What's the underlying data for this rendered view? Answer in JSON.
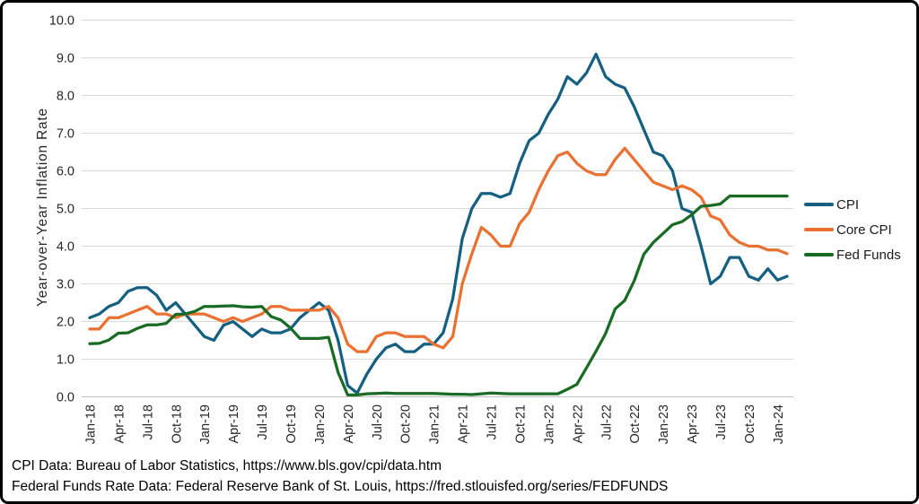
{
  "footer": {
    "line1": "CPI Data: Bureau of Labor Statistics, https://www.bls.gov/cpi/data.htm",
    "line2": "Federal Funds Rate Data: Federal Reserve Bank of St. Louis, https://fred.stlouisfed.org/series/FEDFUNDS"
  },
  "chart_data": {
    "type": "line",
    "title": "",
    "xlabel": "",
    "ylabel": "Year-over-Year Inflation Rate",
    "ylim": [
      0.0,
      10.0
    ],
    "y_ticks": [
      0.0,
      1.0,
      2.0,
      3.0,
      4.0,
      5.0,
      6.0,
      7.0,
      8.0,
      9.0,
      10.0
    ],
    "grid": "horizontal",
    "gridline_color": "#D9D9D9",
    "axis_line_color": "#C0C0C0",
    "tick_label_color": "#262626",
    "legend_position": "right",
    "x_tick_every": 3,
    "x": [
      "Jan-18",
      "Feb-18",
      "Mar-18",
      "Apr-18",
      "May-18",
      "Jun-18",
      "Jul-18",
      "Aug-18",
      "Sep-18",
      "Oct-18",
      "Nov-18",
      "Dec-18",
      "Jan-19",
      "Feb-19",
      "Mar-19",
      "Apr-19",
      "May-19",
      "Jun-19",
      "Jul-19",
      "Aug-19",
      "Sep-19",
      "Oct-19",
      "Nov-19",
      "Dec-19",
      "Jan-20",
      "Feb-20",
      "Mar-20",
      "Apr-20",
      "May-20",
      "Jun-20",
      "Jul-20",
      "Aug-20",
      "Sep-20",
      "Oct-20",
      "Nov-20",
      "Dec-20",
      "Jan-21",
      "Feb-21",
      "Mar-21",
      "Apr-21",
      "May-21",
      "Jun-21",
      "Jul-21",
      "Aug-21",
      "Sep-21",
      "Oct-21",
      "Nov-21",
      "Dec-21",
      "Jan-22",
      "Feb-22",
      "Mar-22",
      "Apr-22",
      "May-22",
      "Jun-22",
      "Jul-22",
      "Aug-22",
      "Sep-22",
      "Oct-22",
      "Nov-22",
      "Dec-22",
      "Jan-23",
      "Feb-23",
      "Mar-23",
      "Apr-23",
      "May-23",
      "Jun-23",
      "Jul-23",
      "Aug-23",
      "Sep-23",
      "Oct-23",
      "Nov-23",
      "Dec-23",
      "Jan-24",
      "Feb-24"
    ],
    "series": [
      {
        "name": "CPI",
        "color": "#156082",
        "values": [
          2.1,
          2.2,
          2.4,
          2.5,
          2.8,
          2.9,
          2.9,
          2.7,
          2.3,
          2.5,
          2.2,
          1.9,
          1.6,
          1.5,
          1.9,
          2.0,
          1.8,
          1.6,
          1.8,
          1.7,
          1.7,
          1.8,
          2.1,
          2.3,
          2.5,
          2.3,
          1.5,
          0.3,
          0.1,
          0.6,
          1.0,
          1.3,
          1.4,
          1.2,
          1.2,
          1.4,
          1.4,
          1.7,
          2.6,
          4.2,
          5.0,
          5.4,
          5.4,
          5.3,
          5.4,
          6.2,
          6.8,
          7.0,
          7.5,
          7.9,
          8.5,
          8.3,
          8.6,
          9.1,
          8.5,
          8.3,
          8.2,
          7.7,
          7.1,
          6.5,
          6.4,
          6.0,
          5.0,
          4.9,
          4.0,
          3.0,
          3.2,
          3.7,
          3.7,
          3.2,
          3.1,
          3.4,
          3.1,
          3.2
        ]
      },
      {
        "name": "Core CPI",
        "color": "#E97132",
        "values": [
          1.8,
          1.8,
          2.1,
          2.1,
          2.2,
          2.3,
          2.4,
          2.2,
          2.2,
          2.1,
          2.2,
          2.2,
          2.2,
          2.1,
          2.0,
          2.1,
          2.0,
          2.1,
          2.2,
          2.4,
          2.4,
          2.3,
          2.3,
          2.3,
          2.3,
          2.4,
          2.1,
          1.4,
          1.2,
          1.2,
          1.6,
          1.7,
          1.7,
          1.6,
          1.6,
          1.6,
          1.4,
          1.3,
          1.6,
          3.0,
          3.8,
          4.5,
          4.3,
          4.0,
          4.0,
          4.6,
          4.9,
          5.5,
          6.0,
          6.4,
          6.5,
          6.2,
          6.0,
          5.9,
          5.9,
          6.3,
          6.6,
          6.3,
          6.0,
          5.7,
          5.6,
          5.5,
          5.6,
          5.5,
          5.3,
          4.8,
          4.7,
          4.3,
          4.1,
          4.0,
          4.0,
          3.9,
          3.9,
          3.8
        ]
      },
      {
        "name": "Fed Funds",
        "color": "#196B24",
        "values": [
          1.41,
          1.42,
          1.51,
          1.69,
          1.7,
          1.82,
          1.91,
          1.91,
          1.95,
          2.19,
          2.2,
          2.27,
          2.4,
          2.4,
          2.41,
          2.42,
          2.39,
          2.38,
          2.4,
          2.13,
          2.04,
          1.83,
          1.55,
          1.55,
          1.55,
          1.58,
          0.65,
          0.05,
          0.05,
          0.08,
          0.09,
          0.1,
          0.09,
          0.09,
          0.09,
          0.09,
          0.09,
          0.08,
          0.07,
          0.07,
          0.06,
          0.08,
          0.1,
          0.09,
          0.08,
          0.08,
          0.08,
          0.08,
          0.08,
          0.08,
          0.2,
          0.33,
          0.77,
          1.21,
          1.68,
          2.33,
          2.56,
          3.08,
          3.78,
          4.1,
          4.33,
          4.57,
          4.65,
          4.83,
          5.06,
          5.08,
          5.12,
          5.33,
          5.33,
          5.33,
          5.33,
          5.33,
          5.33,
          5.33
        ]
      }
    ]
  }
}
